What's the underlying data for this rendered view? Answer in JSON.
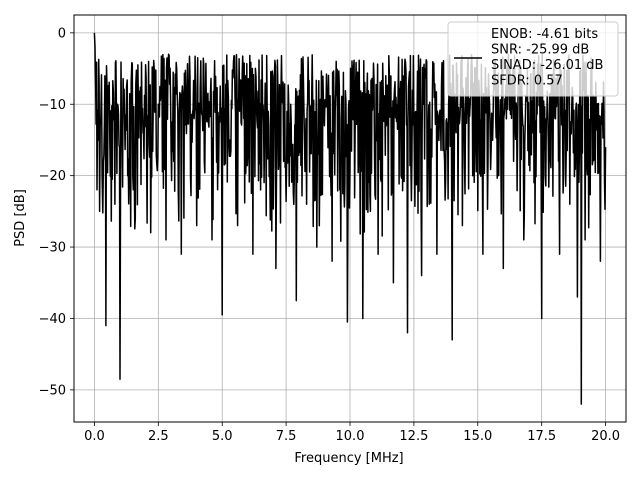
{
  "chart_data": {
    "type": "line",
    "title": "",
    "xlabel": "Frequency [MHz]",
    "ylabel": "PSD [dB]",
    "xlim": [
      -0.8,
      20.8
    ],
    "ylim": [
      -54.5,
      2.5
    ],
    "xticks": [
      0.0,
      2.5,
      5.0,
      7.5,
      10.0,
      12.5,
      15.0,
      17.5,
      20.0
    ],
    "xtick_labels": [
      "0.0",
      "2.5",
      "5.0",
      "7.5",
      "10.0",
      "12.5",
      "15.0",
      "17.5",
      "20.0"
    ],
    "yticks": [
      0,
      -10,
      -20,
      -30,
      -40,
      -50
    ],
    "ytick_labels": [
      "0",
      "−10",
      "−20",
      "−30",
      "−40",
      "−50"
    ],
    "grid": true,
    "legend_position": "top-right",
    "line_color": "#000000",
    "series": [
      {
        "name": "ENOB: -4.61 bits\nSNR: -25.99 dB\nSINAD: -26.01 dB\nSFDR: 0.57",
        "description": "dense noise-like PSD trace spanning 0-20 MHz, mostly between about -27 dB and -3 dB, with deep dips",
        "x": [
          0.0,
          0.02,
          0.05,
          0.1,
          0.15,
          0.2,
          0.25,
          0.3,
          0.35,
          0.45,
          0.6,
          0.8,
          0.9,
          1.0,
          1.3,
          1.6,
          1.9,
          2.2,
          2.5,
          2.8,
          3.1,
          3.4,
          3.7,
          4.0,
          4.3,
          4.6,
          5.0,
          5.3,
          5.6,
          5.9,
          6.2,
          6.5,
          6.8,
          7.1,
          7.4,
          7.9,
          8.3,
          8.7,
          9.0,
          9.3,
          9.6,
          9.9,
          10.2,
          10.5,
          10.8,
          11.1,
          11.4,
          11.7,
          12.0,
          12.25,
          12.5,
          12.8,
          13.1,
          13.4,
          13.7,
          14.0,
          14.15,
          14.4,
          14.8,
          15.2,
          15.6,
          16.0,
          16.4,
          16.8,
          17.2,
          17.5,
          17.8,
          18.2,
          18.6,
          18.9,
          19.05,
          19.2,
          19.5,
          19.8,
          20.0
        ],
        "y": [
          0,
          -2,
          -8,
          -22,
          -15,
          -25,
          -12,
          -20,
          -18,
          -41,
          -15,
          -24,
          -10,
          -48.5,
          -20,
          -26,
          -14,
          -28,
          -10,
          -29,
          -18,
          -31,
          -8,
          -27,
          -18,
          -29,
          -39.5,
          -15,
          -27,
          -6,
          -31,
          -22,
          -11,
          -33,
          -18,
          -37.5,
          -24,
          -30,
          -13,
          -32,
          -22,
          -40.5,
          -14,
          -40,
          -25,
          -31,
          -6,
          -35,
          -20,
          -42,
          -12,
          -34,
          -24,
          -31,
          -18,
          -43,
          -14,
          -27,
          -20,
          -31,
          -12,
          -33,
          -18,
          -29,
          -21,
          -40,
          -16,
          -31,
          -24,
          -37,
          -52,
          -29,
          -18,
          -32,
          -16
        ]
      }
    ]
  }
}
